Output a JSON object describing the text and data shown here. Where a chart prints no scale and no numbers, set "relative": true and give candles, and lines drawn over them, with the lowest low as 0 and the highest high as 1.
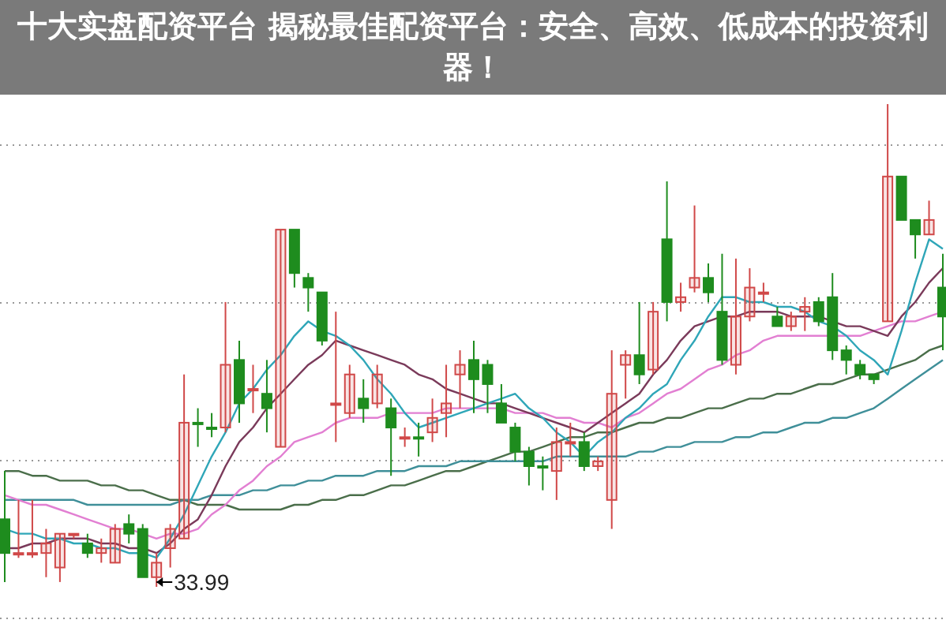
{
  "chart_data": {
    "type": "candlestick",
    "title": "十大实盘配资平台 揭秘最佳配资平台：安全、高效、低成本的投资利器！",
    "relative": true,
    "grid": true,
    "categories": [
      null,
      null,
      null,
      null,
      null,
      null,
      null,
      null,
      null,
      null,
      null,
      null,
      null,
      null,
      null,
      null,
      null,
      null,
      null,
      null,
      null,
      null,
      null,
      null,
      null,
      null,
      null,
      null,
      null,
      null,
      null,
      null,
      null,
      null,
      null,
      null,
      null,
      null,
      null,
      null,
      null,
      null,
      null,
      null,
      null,
      null,
      null,
      null,
      null,
      null,
      null,
      null,
      null,
      null,
      null,
      null,
      null,
      null,
      null,
      null,
      null,
      null,
      null,
      null,
      null,
      null,
      null,
      null,
      null
    ],
    "ohlc": [
      [
        0.14,
        0.24,
        0.01,
        0.07
      ],
      [
        0.07,
        0.18,
        0.06,
        0.07
      ],
      [
        0.07,
        0.18,
        0.06,
        0.07
      ],
      [
        0.07,
        0.12,
        0.02,
        0.09
      ],
      [
        0.04,
        0.11,
        0.01,
        0.11
      ],
      [
        0.11,
        0.11,
        0.1,
        0.11
      ],
      [
        0.09,
        0.11,
        0.06,
        0.07
      ],
      [
        0.07,
        0.1,
        0.05,
        0.08
      ],
      [
        0.05,
        0.13,
        0.05,
        0.12
      ],
      [
        0.13,
        0.15,
        0.09,
        0.11
      ],
      [
        0.12,
        0.13,
        0.02,
        0.02
      ],
      [
        0.02,
        0.07,
        0.0,
        0.05
      ],
      [
        0.08,
        0.13,
        0.04,
        0.12
      ],
      [
        0.1,
        0.44,
        0.1,
        0.34
      ],
      [
        0.34,
        0.37,
        0.29,
        0.34
      ],
      [
        0.33,
        0.36,
        0.31,
        0.33
      ],
      [
        0.33,
        0.59,
        0.32,
        0.46
      ],
      [
        0.47,
        0.51,
        0.34,
        0.38
      ],
      [
        0.41,
        0.46,
        0.36,
        0.41
      ],
      [
        0.4,
        0.47,
        0.32,
        0.37
      ],
      [
        0.29,
        0.74,
        0.29,
        0.74
      ],
      [
        0.74,
        0.74,
        0.62,
        0.65
      ],
      [
        0.64,
        0.65,
        0.57,
        0.62
      ],
      [
        0.61,
        0.61,
        0.5,
        0.51
      ],
      [
        0.38,
        0.57,
        0.3,
        0.38
      ],
      [
        0.36,
        0.46,
        0.35,
        0.44
      ],
      [
        0.39,
        0.43,
        0.34,
        0.37
      ],
      [
        0.38,
        0.46,
        0.37,
        0.44
      ],
      [
        0.37,
        0.39,
        0.23,
        0.33
      ],
      [
        0.31,
        0.33,
        0.29,
        0.31
      ],
      [
        0.31,
        0.34,
        0.27,
        0.31
      ],
      [
        0.32,
        0.39,
        0.3,
        0.35
      ],
      [
        0.36,
        0.46,
        0.31,
        0.38
      ],
      [
        0.44,
        0.49,
        0.37,
        0.46
      ],
      [
        0.47,
        0.51,
        0.36,
        0.43
      ],
      [
        0.46,
        0.47,
        0.36,
        0.42
      ],
      [
        0.38,
        0.42,
        0.34,
        0.34
      ],
      [
        0.33,
        0.34,
        0.26,
        0.28
      ],
      [
        0.28,
        0.29,
        0.21,
        0.25
      ],
      [
        0.25,
        0.27,
        0.2,
        0.25
      ],
      [
        0.24,
        0.33,
        0.18,
        0.3
      ],
      [
        0.3,
        0.34,
        0.27,
        0.3
      ],
      [
        0.3,
        0.32,
        0.24,
        0.25
      ],
      [
        0.25,
        0.27,
        0.24,
        0.26
      ],
      [
        0.18,
        0.49,
        0.12,
        0.4
      ],
      [
        0.46,
        0.49,
        0.39,
        0.48
      ],
      [
        0.48,
        0.59,
        0.42,
        0.44
      ],
      [
        0.45,
        0.59,
        0.44,
        0.57
      ],
      [
        0.72,
        0.84,
        0.55,
        0.59
      ],
      [
        0.59,
        0.63,
        0.57,
        0.6
      ],
      [
        0.62,
        0.79,
        0.61,
        0.64
      ],
      [
        0.64,
        0.67,
        0.59,
        0.61
      ],
      [
        0.57,
        0.69,
        0.46,
        0.47
      ],
      [
        0.46,
        0.68,
        0.44,
        0.56
      ],
      [
        0.56,
        0.66,
        0.55,
        0.62
      ],
      [
        0.61,
        0.63,
        0.59,
        0.61
      ],
      [
        0.56,
        0.58,
        0.54,
        0.54
      ],
      [
        0.54,
        0.57,
        0.53,
        0.56
      ],
      [
        0.57,
        0.6,
        0.53,
        0.58
      ],
      [
        0.59,
        0.6,
        0.54,
        0.55
      ],
      [
        0.6,
        0.65,
        0.47,
        0.49
      ],
      [
        0.49,
        0.5,
        0.44,
        0.47
      ],
      [
        0.46,
        0.47,
        0.43,
        0.44
      ],
      [
        0.44,
        0.44,
        0.42,
        0.43
      ],
      [
        0.55,
        1.0,
        0.55,
        0.85
      ],
      [
        0.85,
        0.85,
        0.76,
        0.76
      ],
      [
        0.76,
        0.76,
        0.68,
        0.73
      ],
      [
        0.73,
        0.8,
        0.73,
        0.76
      ],
      [
        0.62,
        0.69,
        0.49,
        0.56
      ]
    ],
    "colors": [
      "#1e8c1e",
      "#d04848",
      "#d04848",
      "#d04848",
      "#d04848",
      "#d04848",
      "#1e8c1e",
      "#d04848",
      "#d04848",
      "#1e8c1e",
      "#1e8c1e",
      "#d04848",
      "#d04848",
      "#d04848",
      "#1e8c1e",
      "#1e8c1e",
      "#d04848",
      "#1e8c1e",
      "#d04848",
      "#1e8c1e",
      "#d04848",
      "#1e8c1e",
      "#1e8c1e",
      "#1e8c1e",
      "#d04848",
      "#d04848",
      "#1e8c1e",
      "#d04848",
      "#1e8c1e",
      "#d04848",
      "#1e8c1e",
      "#d04848",
      "#d04848",
      "#d04848",
      "#1e8c1e",
      "#1e8c1e",
      "#1e8c1e",
      "#1e8c1e",
      "#1e8c1e",
      "#1e8c1e",
      "#d04848",
      "#d04848",
      "#1e8c1e",
      "#d04848",
      "#d04848",
      "#d04848",
      "#1e8c1e",
      "#d04848",
      "#1e8c1e",
      "#d04848",
      "#d04848",
      "#1e8c1e",
      "#1e8c1e",
      "#d04848",
      "#d04848",
      "#d04848",
      "#1e8c1e",
      "#d04848",
      "#d04848",
      "#1e8c1e",
      "#1e8c1e",
      "#1e8c1e",
      "#1e8c1e",
      "#1e8c1e",
      "#d04848",
      "#1e8c1e",
      "#1e8c1e",
      "#d04848",
      "#1e8c1e"
    ],
    "series": [
      {
        "type": "line",
        "color": "#4a6e4a",
        "values": [
          0.24,
          0.24,
          0.23,
          0.23,
          0.22,
          0.22,
          0.22,
          0.21,
          0.21,
          0.2,
          0.2,
          0.19,
          0.18,
          0.18,
          0.17,
          0.17,
          0.17,
          0.16,
          0.16,
          0.16,
          0.16,
          0.17,
          0.17,
          0.18,
          0.18,
          0.19,
          0.19,
          0.2,
          0.21,
          0.21,
          0.22,
          0.23,
          0.24,
          0.24,
          0.25,
          0.26,
          0.27,
          0.28,
          0.28,
          0.29,
          0.3,
          0.31,
          0.31,
          0.32,
          0.32,
          0.33,
          0.34,
          0.34,
          0.35,
          0.35,
          0.36,
          0.37,
          0.37,
          0.38,
          0.39,
          0.39,
          0.4,
          0.4,
          0.41,
          0.42,
          0.42,
          0.43,
          0.44,
          0.44,
          0.45,
          0.46,
          0.47,
          0.49,
          0.5
        ]
      },
      {
        "type": "line",
        "color": "#3f8f99",
        "values": [
          0.18,
          0.18,
          0.18,
          0.18,
          0.18,
          0.18,
          0.17,
          0.17,
          0.17,
          0.17,
          0.17,
          0.17,
          0.17,
          0.18,
          0.18,
          0.19,
          0.19,
          0.19,
          0.2,
          0.2,
          0.21,
          0.21,
          0.22,
          0.22,
          0.23,
          0.23,
          0.23,
          0.24,
          0.24,
          0.24,
          0.25,
          0.25,
          0.25,
          0.26,
          0.26,
          0.26,
          0.26,
          0.26,
          0.26,
          0.26,
          0.27,
          0.27,
          0.27,
          0.27,
          0.27,
          0.27,
          0.28,
          0.28,
          0.29,
          0.29,
          0.3,
          0.3,
          0.3,
          0.31,
          0.31,
          0.32,
          0.32,
          0.33,
          0.34,
          0.34,
          0.35,
          0.35,
          0.36,
          0.37,
          0.39,
          0.41,
          0.43,
          0.45,
          0.47
        ]
      },
      {
        "type": "line",
        "color": "#e27fd2",
        "values": [
          0.19,
          0.18,
          0.17,
          0.17,
          0.16,
          0.15,
          0.14,
          0.13,
          0.12,
          0.12,
          0.11,
          0.1,
          0.11,
          0.11,
          0.12,
          0.15,
          0.17,
          0.2,
          0.22,
          0.25,
          0.27,
          0.3,
          0.31,
          0.32,
          0.34,
          0.35,
          0.35,
          0.35,
          0.36,
          0.36,
          0.36,
          0.36,
          0.37,
          0.37,
          0.37,
          0.37,
          0.37,
          0.36,
          0.36,
          0.36,
          0.35,
          0.35,
          0.34,
          0.34,
          0.33,
          0.35,
          0.36,
          0.38,
          0.4,
          0.41,
          0.43,
          0.45,
          0.46,
          0.48,
          0.49,
          0.51,
          0.52,
          0.52,
          0.52,
          0.52,
          0.52,
          0.52,
          0.52,
          0.53,
          0.54,
          0.55,
          0.55,
          0.56,
          0.57
        ]
      },
      {
        "type": "line",
        "color": "#7a3a5a",
        "values": [
          0.08,
          0.08,
          0.09,
          0.09,
          0.1,
          0.1,
          0.1,
          0.09,
          0.09,
          0.08,
          0.08,
          0.07,
          0.09,
          0.12,
          0.14,
          0.19,
          0.25,
          0.3,
          0.33,
          0.37,
          0.4,
          0.43,
          0.46,
          0.48,
          0.51,
          0.5,
          0.49,
          0.48,
          0.47,
          0.46,
          0.44,
          0.43,
          0.41,
          0.4,
          0.39,
          0.38,
          0.38,
          0.37,
          0.36,
          0.35,
          0.34,
          0.33,
          0.32,
          0.34,
          0.36,
          0.38,
          0.4,
          0.44,
          0.47,
          0.51,
          0.54,
          0.55,
          0.56,
          0.56,
          0.57,
          0.57,
          0.57,
          0.56,
          0.56,
          0.56,
          0.55,
          0.54,
          0.54,
          0.53,
          0.52,
          0.56,
          0.59,
          0.63,
          0.66
        ]
      },
      {
        "type": "line",
        "color": "#2fa6b8",
        "values": [
          0.12,
          0.11,
          0.11,
          0.1,
          0.1,
          0.09,
          0.09,
          0.08,
          0.08,
          0.07,
          0.07,
          0.06,
          0.1,
          0.15,
          0.21,
          0.27,
          0.32,
          0.38,
          0.41,
          0.45,
          0.48,
          0.52,
          0.55,
          0.53,
          0.52,
          0.5,
          0.47,
          0.43,
          0.4,
          0.36,
          0.33,
          0.34,
          0.35,
          0.36,
          0.37,
          0.38,
          0.39,
          0.4,
          0.37,
          0.35,
          0.32,
          0.3,
          0.27,
          0.3,
          0.32,
          0.35,
          0.37,
          0.4,
          0.42,
          0.47,
          0.51,
          0.56,
          0.6,
          0.6,
          0.59,
          0.59,
          0.58,
          0.58,
          0.57,
          0.55,
          0.54,
          0.52,
          0.49,
          0.47,
          0.44,
          0.53,
          0.63,
          0.72,
          0.7
        ]
      }
    ],
    "annotations": [
      "33.99"
    ]
  }
}
